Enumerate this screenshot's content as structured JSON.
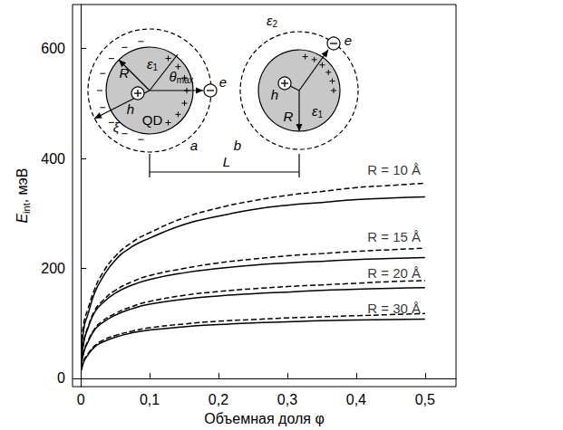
{
  "chart_data": {
    "type": "line",
    "xlabel": "Объемная доля φ",
    "ylabel": {
      "main": "E",
      "sub": "int",
      "unit": ", мэВ"
    },
    "x": [
      0.001,
      0.005,
      0.01,
      0.02,
      0.03,
      0.05,
      0.075,
      0.1,
      0.15,
      0.2,
      0.25,
      0.3,
      0.35,
      0.4,
      0.45,
      0.5
    ],
    "series": [
      {
        "values": [
          50,
          95,
          115,
          155,
          180,
          215,
          240,
          255,
          280,
          295,
          307,
          315,
          320,
          325,
          328,
          330
        ],
        "color": "#000000",
        "line_style": "solid"
      },
      {
        "values": [
          70,
          105,
          125,
          162,
          188,
          222,
          248,
          265,
          292,
          310,
          323,
          333,
          340,
          347,
          351,
          355
        ],
        "color": "#000000",
        "line_style": "dashed"
      },
      {
        "values": [
          35,
          70,
          90,
          120,
          135,
          155,
          170,
          180,
          192,
          200,
          206,
          210,
          213,
          216,
          218,
          220
        ],
        "color": "#000000",
        "line_style": "solid"
      },
      {
        "values": [
          40,
          72,
          92,
          123,
          139,
          160,
          176,
          187,
          200,
          210,
          217,
          223,
          227,
          231,
          234,
          237
        ],
        "color": "#000000",
        "line_style": "dashed"
      },
      {
        "values": [
          25,
          50,
          65,
          88,
          100,
          115,
          127,
          135,
          144,
          150,
          154,
          157,
          160,
          162,
          164,
          165
        ],
        "color": "#000000",
        "line_style": "solid"
      },
      {
        "values": [
          28,
          52,
          67,
          90,
          103,
          118,
          131,
          140,
          151,
          158,
          163,
          167,
          170,
          173,
          176,
          178
        ],
        "color": "#000000",
        "line_style": "dashed"
      },
      {
        "values": [
          15,
          32,
          42,
          57,
          65,
          75,
          83,
          88,
          94,
          98,
          101,
          103,
          105,
          106,
          107,
          108
        ],
        "color": "#000000",
        "line_style": "solid"
      },
      {
        "values": [
          17,
          34,
          44,
          59,
          68,
          78,
          86,
          92,
          99,
          104,
          107,
          110,
          112,
          114,
          116,
          118
        ],
        "color": "#000000",
        "line_style": "dashed"
      }
    ],
    "annotations": [
      {
        "text": "R = 10 Å",
        "x": 0.455,
        "y": 380
      },
      {
        "text": "R = 15 Å",
        "x": 0.455,
        "y": 258
      },
      {
        "text": "R = 20 Å",
        "x": 0.455,
        "y": 192
      },
      {
        "text": "R = 30 Å",
        "x": 0.455,
        "y": 128
      }
    ],
    "xlim": [
      -0.012,
      0.545
    ],
    "xticks": [
      0,
      {
        "value": 0.1,
        "label": "0,1"
      },
      {
        "value": 0.2,
        "label": "0,2"
      },
      {
        "value": 0.3,
        "label": "0,3"
      },
      {
        "value": 0.4,
        "label": "0,4"
      },
      {
        "value": 0.5,
        "label": "0,5"
      }
    ],
    "ylim": [
      -15,
      680
    ],
    "yticks": [
      0,
      200,
      400,
      600
    ],
    "grid": false,
    "inset": {
      "eps1_left": {
        "base": "ε",
        "sub": "1"
      },
      "R_left": "R",
      "theta": {
        "base": "θ",
        "sub": "max"
      },
      "h_left": "h",
      "e_left": "e",
      "xi": "ξ",
      "qd": "QD",
      "a": "a",
      "b": "b",
      "eps2": {
        "base": "ε",
        "sub": "2"
      },
      "h_right": "h",
      "e_right": "e",
      "eps1_right": {
        "base": "ε",
        "sub": "1"
      },
      "R_right": "R",
      "L": "L"
    }
  }
}
